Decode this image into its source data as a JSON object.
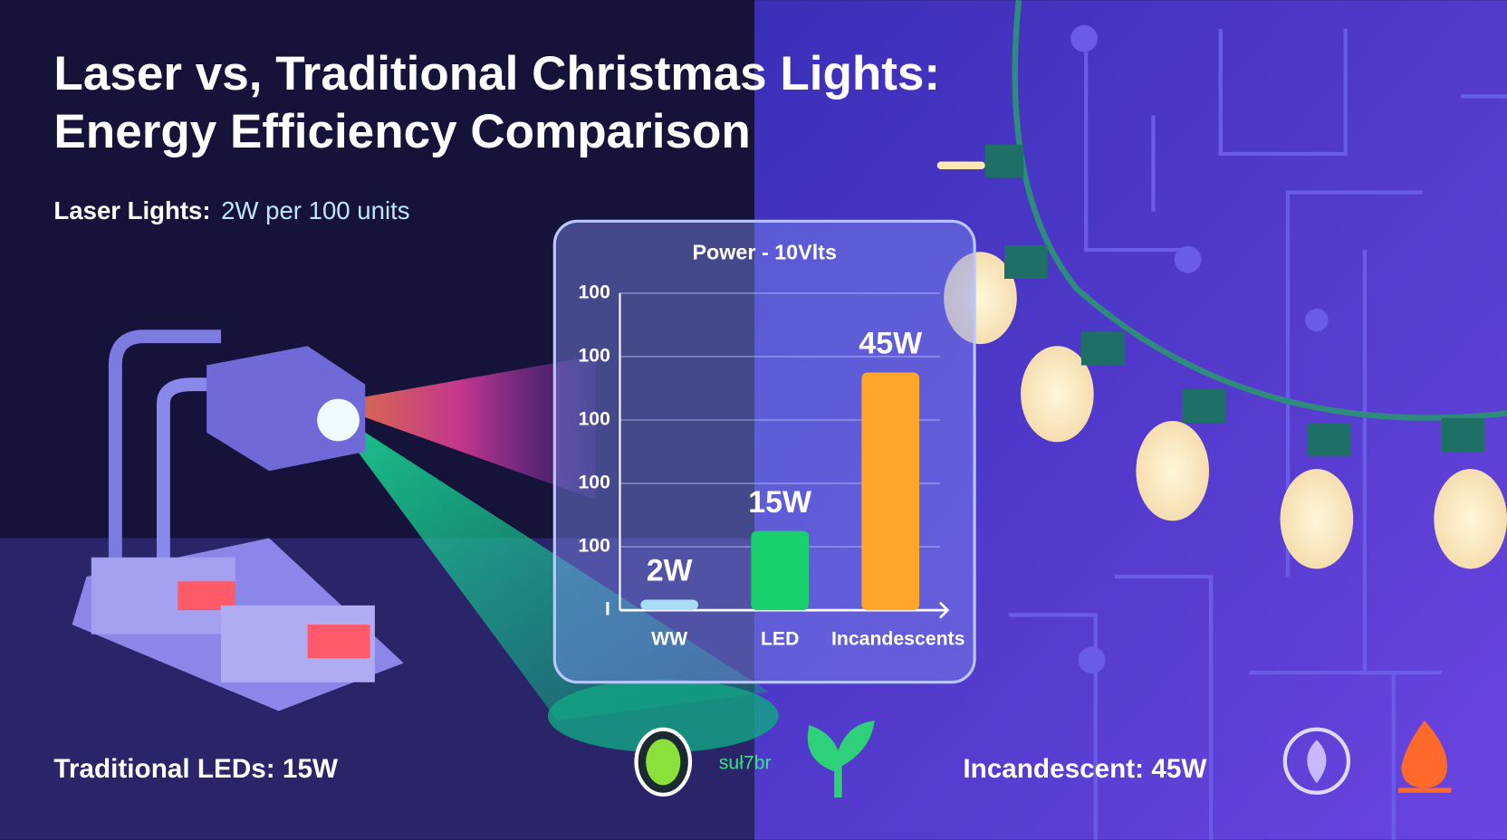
{
  "header": {
    "title": [
      "Laser vs, Traditional Christmas Lights:",
      "Energy Efficiency Comparison"
    ]
  },
  "laser_label": {
    "name": "Laser Lights:",
    "detail": "2W per 100 units"
  },
  "leds_label": "Traditional LEDs: 15W",
  "incandescent_label": "Incandescent: 45W",
  "icon_caption": "suł7br",
  "chart_data": {
    "type": "bar",
    "title": "Power - 10Vlts",
    "categories": [
      "WW",
      "LED",
      "Incandescents"
    ],
    "values": [
      2,
      15,
      45
    ],
    "value_labels": [
      "2W",
      "15W",
      "45W"
    ],
    "colors": [
      "#a9dcf7",
      "#18d06c",
      "#ffa62b"
    ],
    "ylim": [
      0,
      60
    ],
    "yticks": [
      {
        "value": 0,
        "label": "I"
      },
      {
        "value": 12,
        "label": "100"
      },
      {
        "value": 24,
        "label": "100"
      },
      {
        "value": 36,
        "label": "100"
      },
      {
        "value": 48,
        "label": "100"
      },
      {
        "value": 60,
        "label": "100"
      }
    ],
    "grid": true
  }
}
